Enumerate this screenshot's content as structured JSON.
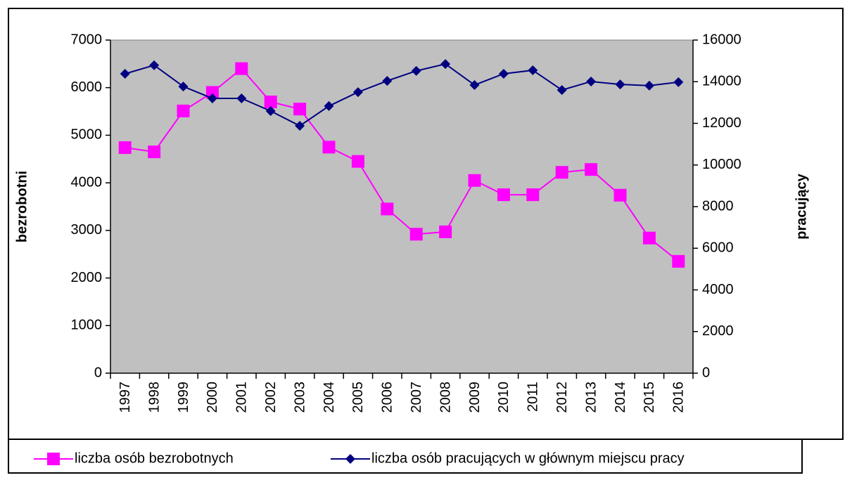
{
  "chart_data": {
    "type": "line",
    "categories": [
      "1997",
      "1998",
      "1999",
      "2000",
      "2001",
      "2002",
      "2003",
      "2004",
      "2005",
      "2006",
      "2007",
      "2008",
      "2009",
      "2010",
      "2011",
      "2012",
      "2013",
      "2014",
      "2015",
      "2016"
    ],
    "series": [
      {
        "name": "liczba osób bezrobotnych",
        "color": "#ff00ff",
        "marker": "square",
        "axis": "y",
        "values": [
          4740,
          4650,
          5510,
          5900,
          6400,
          5700,
          5550,
          4750,
          4450,
          3450,
          2920,
          2970,
          4050,
          3750,
          3750,
          4220,
          4280,
          3740,
          2840,
          2350
        ]
      },
      {
        "name": "liczba osób pracujących w głównym miejscu pracy",
        "color": "#000080",
        "marker": "diamond",
        "axis": "y2",
        "values": [
          14380,
          14790,
          13770,
          13200,
          13200,
          12590,
          11880,
          12830,
          13500,
          14040,
          14520,
          14850,
          13840,
          14380,
          14550,
          13600,
          14010,
          13870,
          13810,
          13980
        ]
      }
    ],
    "ylabel": "bezrobotni",
    "y2label": "pracujący",
    "ylim": [
      0,
      7000
    ],
    "yticks": [
      0,
      1000,
      2000,
      3000,
      4000,
      5000,
      6000,
      7000
    ],
    "y2lim": [
      0,
      16000
    ],
    "y2ticks": [
      0,
      2000,
      4000,
      6000,
      8000,
      10000,
      12000,
      14000,
      16000
    ],
    "legend": "bottom",
    "plot_background": "#c0c0c0"
  }
}
